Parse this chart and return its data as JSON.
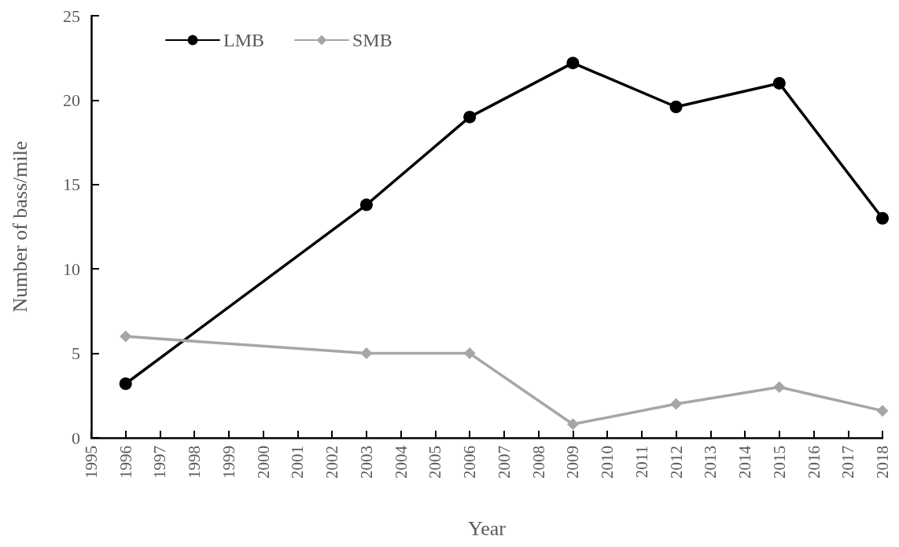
{
  "chart_data": {
    "type": "line",
    "xlabel": "Year",
    "ylabel": "Number of bass/mile",
    "x": [
      1996,
      2003,
      2006,
      2009,
      2012,
      2015,
      2018
    ],
    "series": [
      {
        "name": "LMB",
        "color": "#000000",
        "marker": "circle",
        "values": [
          3.2,
          13.8,
          19.0,
          22.2,
          19.6,
          21.0,
          13.0
        ]
      },
      {
        "name": "SMB",
        "color": "#a6a6a6",
        "marker": "diamond",
        "values": [
          6.0,
          5.0,
          5.0,
          0.8,
          2.0,
          3.0,
          1.6
        ]
      }
    ],
    "xlim": [
      1995,
      2018
    ],
    "xticks": [
      1995,
      1996,
      1997,
      1998,
      1999,
      2000,
      2001,
      2002,
      2003,
      2004,
      2005,
      2006,
      2007,
      2008,
      2009,
      2010,
      2011,
      2012,
      2013,
      2014,
      2015,
      2016,
      2017,
      2018
    ],
    "ylim": [
      0,
      25
    ],
    "yticks": [
      0,
      5,
      10,
      15,
      20,
      25
    ],
    "grid": false,
    "legend": "top left",
    "line_style": "solid"
  }
}
